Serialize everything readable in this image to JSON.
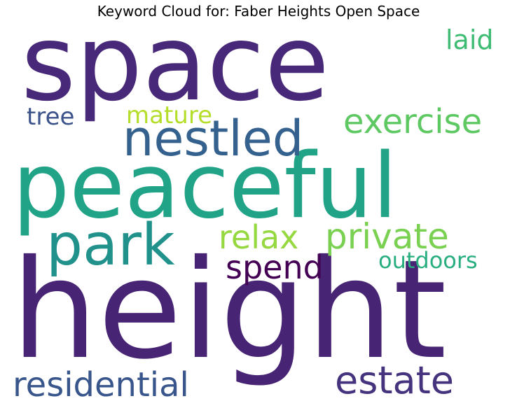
{
  "title": "Keyword Cloud for: Faber Heights Open Space",
  "words": [
    {
      "text": "space",
      "color": "#482878"
    },
    {
      "text": "peaceful",
      "color": "#20a386"
    },
    {
      "text": "height",
      "color": "#482475"
    },
    {
      "text": "nestled",
      "color": "#34618d"
    },
    {
      "text": "park",
      "color": "#21918c"
    },
    {
      "text": "exercise",
      "color": "#5ec962"
    },
    {
      "text": "relax",
      "color": "#95d840"
    },
    {
      "text": "private",
      "color": "#7ad151"
    },
    {
      "text": "residential",
      "color": "#39568c"
    },
    {
      "text": "estate",
      "color": "#46337e"
    },
    {
      "text": "spend",
      "color": "#440154"
    },
    {
      "text": "outdoors",
      "color": "#29af7f"
    },
    {
      "text": "laid",
      "color": "#3fbc73"
    },
    {
      "text": "tree",
      "color": "#3b528b"
    },
    {
      "text": "mature",
      "color": "#b5de2b"
    }
  ]
}
